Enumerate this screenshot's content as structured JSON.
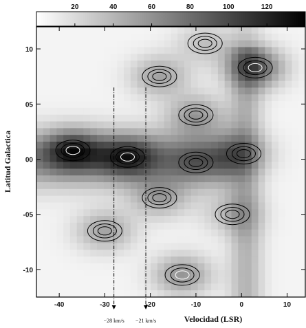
{
  "chart_data": {
    "type": "heatmap",
    "title": "",
    "xlabel": "Velocidad (LSR)",
    "ylabel": "Latitud Galactica",
    "xlim": [
      -45,
      14
    ],
    "ylim": [
      -12.5,
      12
    ],
    "x_ticks": [
      -40,
      -30,
      -20,
      -10,
      0,
      10
    ],
    "x_tick_labels": [
      "-40",
      "-30",
      "-20",
      "-10",
      "0",
      "10"
    ],
    "y_ticks": [
      10,
      5,
      0,
      -5,
      -10
    ],
    "y_tick_labels": [
      "10",
      "05",
      "00",
      "-05",
      "-10"
    ],
    "colorbar": {
      "range": [
        0,
        140
      ],
      "ticks": [
        20,
        40,
        60,
        80,
        100,
        120
      ],
      "tick_labels": [
        "20",
        "40",
        "60",
        "80",
        "100",
        "120"
      ],
      "low_color": "#ffffff",
      "high_color": "#000000"
    },
    "annotations": [
      {
        "x": -28,
        "label": "−28 km/s",
        "style": "dash-dot vertical line with arrow"
      },
      {
        "x": -21,
        "label": "−21 km/s",
        "style": "dash-dot vertical line with arrow"
      }
    ],
    "features": [
      {
        "name": "",
        "x": -37,
        "y": 0.8,
        "value": 135
      },
      {
        "name": "",
        "x": -25,
        "y": 0.2,
        "value": 120
      },
      {
        "name": "",
        "x": -10,
        "y": -0.3,
        "value": 55
      },
      {
        "name": "",
        "x": 0.5,
        "y": 0.5,
        "value": 70
      },
      {
        "name": "",
        "x": 3,
        "y": 8.3,
        "value": 140
      },
      {
        "name": "",
        "x": -8,
        "y": 10.5,
        "value": 50
      },
      {
        "name": "",
        "x": -18,
        "y": 7.5,
        "value": 80
      },
      {
        "name": "",
        "x": -10,
        "y": 4.0,
        "value": 85
      },
      {
        "name": "",
        "x": -18,
        "y": -3.5,
        "value": 75
      },
      {
        "name": "",
        "x": -30,
        "y": -6.5,
        "value": 80
      },
      {
        "name": "",
        "x": -13,
        "y": -10.5,
        "value": 95
      },
      {
        "name": "",
        "x": -2,
        "y": -5,
        "value": 55
      }
    ]
  }
}
